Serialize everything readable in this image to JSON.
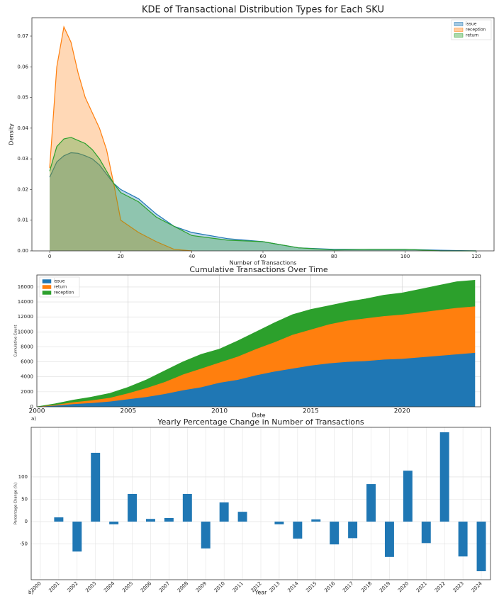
{
  "chart_data": [
    {
      "type": "area",
      "stacked": false,
      "title": "KDE of Transactional Distribution Types for Each SKU",
      "xlabel": "Number of Transactions",
      "ylabel": "Density",
      "x": [
        0,
        2,
        4,
        6,
        8,
        10,
        12,
        14,
        16,
        18,
        20,
        25,
        30,
        35,
        40,
        50,
        60,
        70,
        80,
        90,
        100,
        110,
        120
      ],
      "series": [
        {
          "name": "issue",
          "color": "#1f77b4",
          "values": [
            0.024,
            0.029,
            0.031,
            0.032,
            0.0318,
            0.031,
            0.03,
            0.028,
            0.025,
            0.022,
            0.02,
            0.017,
            0.012,
            0.008,
            0.006,
            0.004,
            0.003,
            0.001,
            0.0005,
            0.0005,
            0.0005,
            0.0002,
            0
          ]
        },
        {
          "name": "reception",
          "color": "#ff7f0e",
          "values": [
            0.027,
            0.06,
            0.073,
            0.068,
            0.058,
            0.05,
            0.045,
            0.04,
            0.033,
            0.022,
            0.01,
            0.006,
            0.003,
            0.0005,
            0,
            null,
            null,
            null,
            null,
            null,
            null,
            null,
            null
          ]
        },
        {
          "name": "return",
          "color": "#2ca02c",
          "values": [
            0.026,
            0.034,
            0.0365,
            0.037,
            0.036,
            0.035,
            0.033,
            0.03,
            0.026,
            0.022,
            0.019,
            0.016,
            0.011,
            0.008,
            0.005,
            0.0035,
            0.003,
            0.001,
            0.0003,
            0.0005,
            0.0005,
            0,
            0
          ]
        }
      ],
      "xlim": [
        -5,
        125
      ],
      "xticks": [
        0,
        20,
        40,
        60,
        80,
        100,
        120
      ],
      "ylim": [
        0,
        0.076
      ],
      "yticks": [
        {
          "value": 0,
          "label": "0.00"
        },
        {
          "value": 0.01,
          "label": "0.01"
        },
        {
          "value": 0.02,
          "label": "0.02"
        },
        {
          "value": 0.03,
          "label": "0.03"
        },
        {
          "value": 0.04,
          "label": "0.04"
        },
        {
          "value": 0.05,
          "label": "0.05"
        },
        {
          "value": 0.06,
          "label": "0.06"
        },
        {
          "value": 0.07,
          "label": "0.07"
        }
      ],
      "grid": false,
      "legend": "upper right"
    },
    {
      "type": "area",
      "stacked": true,
      "title": "Cumulative Transactions Over Time",
      "xlabel": "Date",
      "ylabel": "Cumulative Count",
      "annotation": "a)",
      "x": [
        2000,
        2001,
        2002,
        2003,
        2004,
        2005,
        2006,
        2007,
        2008,
        2009,
        2010,
        2011,
        2012,
        2013,
        2014,
        2015,
        2016,
        2017,
        2018,
        2019,
        2020,
        2021,
        2022,
        2023,
        2024
      ],
      "series": [
        {
          "name": "issue",
          "color": "#1f77b4",
          "values": [
            0,
            150,
            350,
            500,
            700,
            1000,
            1300,
            1700,
            2200,
            2600,
            3200,
            3600,
            4200,
            4700,
            5100,
            5500,
            5800,
            6000,
            6100,
            6300,
            6400,
            6600,
            6800,
            7000,
            7200
          ]
        },
        {
          "name": "return",
          "color": "#ff7f0e",
          "values": [
            0,
            100,
            250,
            350,
            500,
            800,
            1200,
            1600,
            2100,
            2500,
            2700,
            3100,
            3500,
            3900,
            4500,
            4800,
            5200,
            5500,
            5700,
            5800,
            5900,
            6000,
            6100,
            6200,
            6200
          ]
        },
        {
          "name": "reception",
          "color": "#2ca02c",
          "values": [
            0,
            150,
            300,
            450,
            600,
            800,
            1100,
            1500,
            1700,
            1900,
            1800,
            2100,
            2300,
            2600,
            2700,
            2700,
            2500,
            2500,
            2600,
            2800,
            2900,
            3100,
            3300,
            3500,
            3500
          ]
        }
      ],
      "xlim": [
        2000,
        2024.3
      ],
      "xticks": [
        2000,
        2005,
        2010,
        2015,
        2020
      ],
      "ylim": [
        0,
        17600
      ],
      "yticks": [
        0,
        2000,
        4000,
        6000,
        8000,
        10000,
        12000,
        14000,
        16000
      ],
      "grid": true,
      "legend": "upper left"
    },
    {
      "type": "bar",
      "title": "Yearly Percentage Change in Number of Transactions",
      "xlabel": "Year",
      "ylabel": "Percentage Change (%)",
      "annotation": "b)",
      "categories": [
        "2000",
        "2001",
        "2002",
        "2003",
        "2004",
        "2005",
        "2006",
        "2007",
        "2008",
        "2009",
        "2010",
        "2011",
        "2012",
        "2013",
        "2014",
        "2015",
        "2016",
        "2017",
        "2018",
        "2019",
        "2020",
        "2021",
        "2022",
        "2023",
        "2024"
      ],
      "values": [
        0,
        9.5,
        -67,
        154,
        -6,
        62,
        6,
        8,
        62,
        -60,
        43,
        22,
        0,
        -6,
        -38,
        5,
        -51,
        -37,
        84,
        -79,
        114,
        -48,
        200,
        -78,
        -111
      ],
      "color": "#1f77b4",
      "ylim": [
        -130,
        211
      ],
      "yticks": [
        -50,
        0,
        50,
        100
      ],
      "grid": true
    }
  ]
}
